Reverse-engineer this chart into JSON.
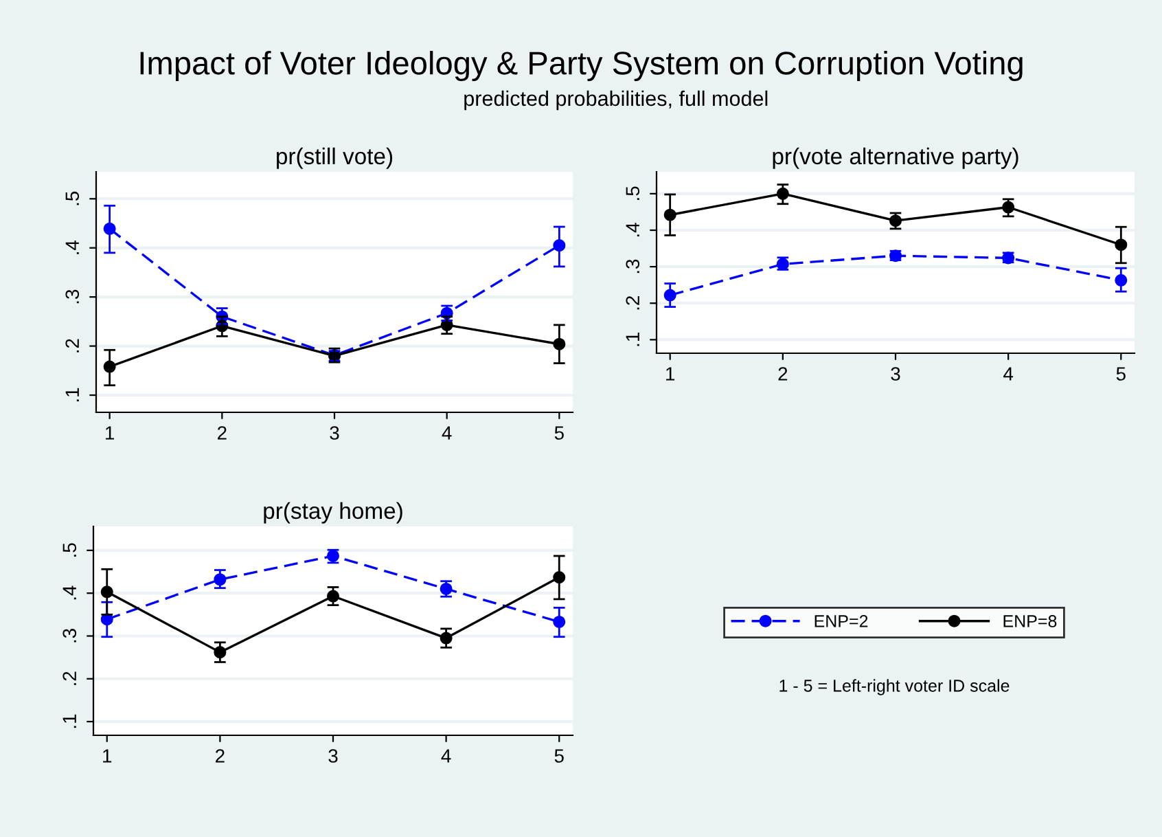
{
  "chart_data": [
    {
      "type": "line",
      "title": "pr(still vote)",
      "annotations": [
        "Impact of Voter Ideology & Party System on Corruption Voting",
        "predicted probabilities, full model"
      ],
      "x": [
        1,
        2,
        3,
        4,
        5
      ],
      "xlim": [
        0.88,
        5.12
      ],
      "xticks": [
        1,
        2,
        3,
        4,
        5
      ],
      "ylim": [
        0.065,
        0.555
      ],
      "yticks": [
        {
          "value": 0.1,
          "label": ".1"
        },
        {
          "value": 0.2,
          "label": ".2"
        },
        {
          "value": 0.3,
          "label": ".3"
        },
        {
          "value": 0.4,
          "label": ".4"
        },
        {
          "value": 0.5,
          "label": ".5"
        }
      ],
      "grid": "y",
      "marker": "circle",
      "series": [
        {
          "color": "#0000ff",
          "line_style": "dashed",
          "values": [
            0.439,
            0.26,
            0.181,
            0.267,
            0.405
          ],
          "errors": [
            [
              0.39,
              0.486
            ],
            [
              0.245,
              0.277
            ],
            [
              0.17,
              0.19
            ],
            [
              0.252,
              0.282
            ],
            [
              0.362,
              0.443
            ]
          ]
        },
        {
          "color": "#000000",
          "line_style": "solid",
          "values": [
            0.158,
            0.241,
            0.18,
            0.243,
            0.204
          ],
          "errors": [
            [
              0.12,
              0.192
            ],
            [
              0.22,
              0.26
            ],
            [
              0.167,
              0.195
            ],
            [
              0.225,
              0.26
            ],
            [
              0.165,
              0.243
            ]
          ]
        }
      ]
    },
    {
      "type": "line",
      "title": "pr(vote alternative party)",
      "x": [
        1,
        2,
        3,
        4,
        5
      ],
      "xlim": [
        0.88,
        5.12
      ],
      "xticks": [
        1,
        2,
        3,
        4,
        5
      ],
      "ylim": [
        0.063,
        0.56
      ],
      "yticks": [
        {
          "value": 0.1,
          "label": ".1"
        },
        {
          "value": 0.2,
          "label": ".2"
        },
        {
          "value": 0.3,
          "label": ".3"
        },
        {
          "value": 0.4,
          "label": ".4"
        },
        {
          "value": 0.5,
          "label": ".5"
        }
      ],
      "grid": "y",
      "marker": "circle",
      "series": [
        {
          "color": "#0000ff",
          "line_style": "dashed",
          "values": [
            0.222,
            0.307,
            0.33,
            0.324,
            0.263
          ],
          "errors": [
            [
              0.19,
              0.254
            ],
            [
              0.292,
              0.325
            ],
            [
              0.318,
              0.343
            ],
            [
              0.312,
              0.338
            ],
            [
              0.232,
              0.296
            ]
          ]
        },
        {
          "color": "#000000",
          "line_style": "solid",
          "values": [
            0.442,
            0.5,
            0.426,
            0.463,
            0.36
          ],
          "errors": [
            [
              0.386,
              0.498
            ],
            [
              0.472,
              0.525
            ],
            [
              0.404,
              0.447
            ],
            [
              0.438,
              0.485
            ],
            [
              0.31,
              0.409
            ]
          ]
        }
      ]
    },
    {
      "type": "line",
      "title": "pr(stay home)",
      "annotations": [
        "1 - 5 = Left-right voter ID scale"
      ],
      "legend": "right",
      "x": [
        1,
        2,
        3,
        4,
        5
      ],
      "xlim": [
        0.88,
        5.12
      ],
      "xticks": [
        1,
        2,
        3,
        4,
        5
      ],
      "ylim": [
        0.068,
        0.556
      ],
      "yticks": [
        {
          "value": 0.1,
          "label": ".1"
        },
        {
          "value": 0.2,
          "label": ".2"
        },
        {
          "value": 0.3,
          "label": ".3"
        },
        {
          "value": 0.4,
          "label": ".4"
        },
        {
          "value": 0.5,
          "label": ".5"
        }
      ],
      "grid": "y",
      "marker": "circle",
      "series": [
        {
          "name": "ENP=2",
          "color": "#0000ff",
          "line_style": "dashed",
          "values": [
            0.339,
            0.432,
            0.487,
            0.41,
            0.333
          ],
          "errors": [
            [
              0.298,
              0.379
            ],
            [
              0.412,
              0.454
            ],
            [
              0.471,
              0.501
            ],
            [
              0.392,
              0.428
            ],
            [
              0.298,
              0.366
            ]
          ]
        },
        {
          "name": "ENP=8",
          "color": "#000000",
          "line_style": "solid",
          "values": [
            0.403,
            0.262,
            0.393,
            0.295,
            0.437
          ],
          "errors": [
            [
              0.35,
              0.456
            ],
            [
              0.239,
              0.285
            ],
            [
              0.372,
              0.414
            ],
            [
              0.273,
              0.317
            ],
            [
              0.386,
              0.487
            ]
          ]
        }
      ]
    }
  ]
}
